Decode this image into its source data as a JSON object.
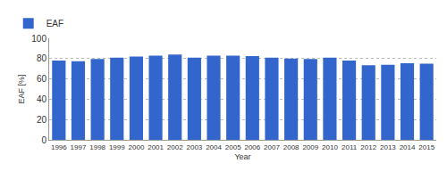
{
  "chart_data": {
    "type": "bar",
    "x_label": "Year",
    "y_label": "EAF [%]",
    "categories": [
      "1996",
      "1997",
      "1998",
      "1999",
      "2000",
      "2001",
      "2002",
      "2003",
      "2004",
      "2005",
      "2006",
      "2007",
      "2008",
      "2009",
      "2010",
      "2011",
      "2012",
      "2013",
      "2014",
      "2015"
    ],
    "series": [
      {
        "name": "EAF",
        "color": "#3366cc",
        "values": [
          78,
          77.5,
          79.5,
          81,
          82,
          83,
          84,
          81,
          83,
          83,
          82.5,
          81,
          80,
          79.5,
          81,
          78,
          73.5,
          74,
          75.5,
          75
        ]
      }
    ],
    "ylim": [
      0,
      100
    ],
    "yticks": [
      0,
      20,
      40,
      60,
      80,
      100
    ],
    "grid": true,
    "legend": "top-left"
  }
}
